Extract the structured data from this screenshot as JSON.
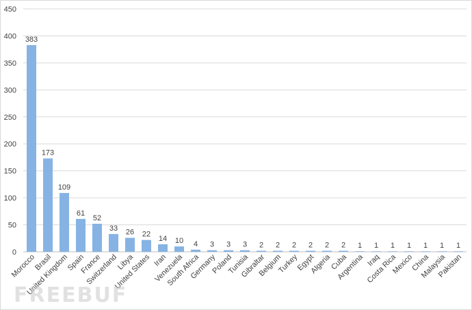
{
  "chart_data": {
    "type": "bar",
    "categories": [
      "Morocco",
      "Brasil",
      "United Kingdom",
      "Spain",
      "France",
      "Switzerland",
      "Libya",
      "United States",
      "Iran",
      "Venezuela",
      "South Africa",
      "Germany",
      "Poland",
      "Tunisia",
      "Gibraltar",
      "Belgium",
      "Turkey",
      "Egypt",
      "Algeria",
      "Cuba",
      "Argentina",
      "Iraq",
      "Costa Rica",
      "Mexico",
      "China",
      "Malaysia",
      "Pakistan"
    ],
    "values": [
      383,
      173,
      109,
      61,
      52,
      33,
      26,
      22,
      14,
      10,
      4,
      3,
      3,
      3,
      2,
      2,
      2,
      2,
      2,
      2,
      1,
      1,
      1,
      1,
      1,
      1,
      1
    ],
    "ylim": [
      0,
      450
    ],
    "yticks": [
      0,
      50,
      100,
      150,
      200,
      250,
      300,
      350,
      400,
      450
    ],
    "grid": true,
    "colors": {
      "bar": "#86b3e3",
      "grid": "#d9d9d9",
      "text": "#404040"
    }
  },
  "watermark": "FREEBUF"
}
